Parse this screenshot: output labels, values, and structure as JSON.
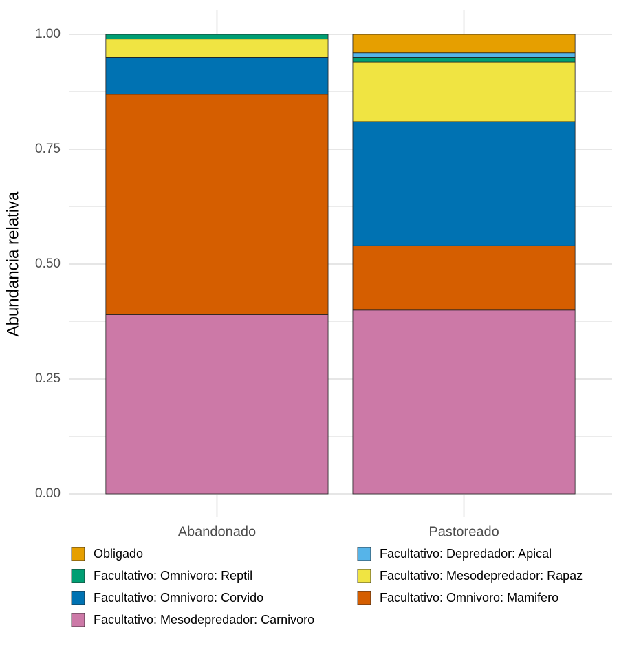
{
  "chart_data": {
    "type": "stacked_bar",
    "y_label": "Abundancia relativa",
    "categories": [
      "Abandonado",
      "Pastoreado"
    ],
    "series": [
      {
        "name": "Obligado",
        "color": "#E69F00",
        "values": [
          0,
          0.04
        ]
      },
      {
        "name": "Facultativo: Depredador: Apical",
        "color": "#56B4E9",
        "values": [
          0,
          0.01
        ]
      },
      {
        "name": "Facultativo: Omnivoro: Reptil",
        "color": "#009E73",
        "values": [
          0.01,
          0.01
        ]
      },
      {
        "name": "Facultativo: Mesodepredador: Rapaz",
        "color": "#F0E442",
        "values": [
          0.04,
          0.13
        ]
      },
      {
        "name": "Facultativo: Omnivoro: Corvido",
        "color": "#0072B2",
        "values": [
          0.08,
          0.27
        ]
      },
      {
        "name": "Facultativo: Omnivoro: Mamifero",
        "color": "#D55E00",
        "values": [
          0.48,
          0.14
        ]
      },
      {
        "name": "Facultativo: Mesodepredador: Carnivoro",
        "color": "#CC79A7",
        "values": [
          0.39,
          0.4
        ]
      }
    ],
    "ylim": [
      0,
      1
    ],
    "yticks": [
      {
        "value": 0,
        "label": "0.00"
      },
      {
        "value": 0.25,
        "label": "0.25"
      },
      {
        "value": 0.5,
        "label": "0.50"
      },
      {
        "value": 0.75,
        "label": "0.75"
      },
      {
        "value": 1,
        "label": "1.00"
      }
    ],
    "grid": true
  }
}
